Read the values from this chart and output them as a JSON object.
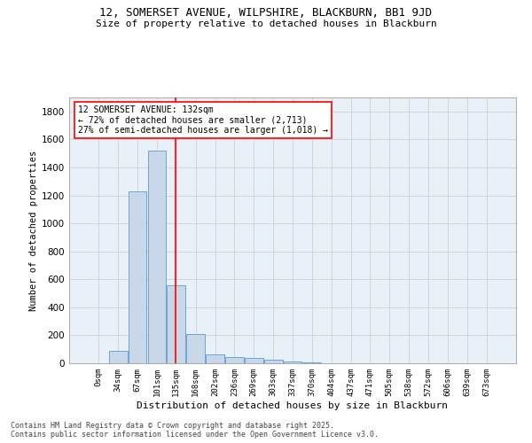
{
  "title_line1": "12, SOMERSET AVENUE, WILPSHIRE, BLACKBURN, BB1 9JD",
  "title_line2": "Size of property relative to detached houses in Blackburn",
  "xlabel": "Distribution of detached houses by size in Blackburn",
  "ylabel": "Number of detached properties",
  "bin_labels": [
    "0sqm",
    "34sqm",
    "67sqm",
    "101sqm",
    "135sqm",
    "168sqm",
    "202sqm",
    "236sqm",
    "269sqm",
    "303sqm",
    "337sqm",
    "370sqm",
    "404sqm",
    "437sqm",
    "471sqm",
    "505sqm",
    "538sqm",
    "572sqm",
    "606sqm",
    "639sqm",
    "673sqm"
  ],
  "bar_heights": [
    0,
    90,
    1230,
    1520,
    560,
    210,
    65,
    45,
    35,
    28,
    10,
    5,
    2,
    1,
    0,
    0,
    0,
    0,
    0,
    0,
    0
  ],
  "bar_color": "#c8d8e8",
  "bar_edge_color": "#5b9bd5",
  "grid_color": "#cccccc",
  "bg_color": "#e8f0f8",
  "ylim": [
    0,
    1900
  ],
  "yticks": [
    0,
    200,
    400,
    600,
    800,
    1000,
    1200,
    1400,
    1600,
    1800
  ],
  "red_line_x": 3.97,
  "annotation_line1": "12 SOMERSET AVENUE: 132sqm",
  "annotation_line2": "← 72% of detached houses are smaller (2,713)",
  "annotation_line3": "27% of semi-detached houses are larger (1,018) →",
  "footer_line1": "Contains HM Land Registry data © Crown copyright and database right 2025.",
  "footer_line2": "Contains public sector information licensed under the Open Government Licence v3.0."
}
